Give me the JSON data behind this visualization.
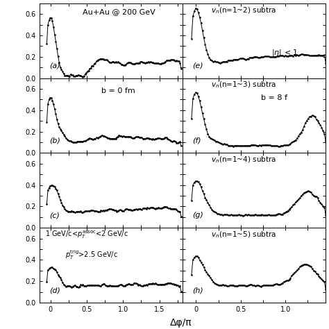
{
  "fig_width": 4.74,
  "fig_height": 4.74,
  "dpi": 100,
  "ylim": [
    0.0,
    0.7
  ],
  "xlim_left": [
    -0.15,
    1.82
  ],
  "xlim_right": [
    -0.15,
    1.45
  ],
  "yticks": [
    0.0,
    0.2,
    0.4,
    0.6
  ],
  "xticks_left": [
    0.0,
    0.5,
    1.0,
    1.5
  ],
  "xticks_right": [
    0.0,
    0.5,
    1.0
  ],
  "xlabel": "Δφ/π",
  "labels_left": [
    "(a)",
    "(b)",
    "(c)",
    "(d)"
  ],
  "labels_right": [
    "(e)",
    "(f)",
    "(g)",
    "(h)"
  ],
  "text_a": "Au+Au @ 200 GeV",
  "text_b": "b = 0 fm",
  "linecolor": "#000000",
  "bgcolor": "#ffffff"
}
